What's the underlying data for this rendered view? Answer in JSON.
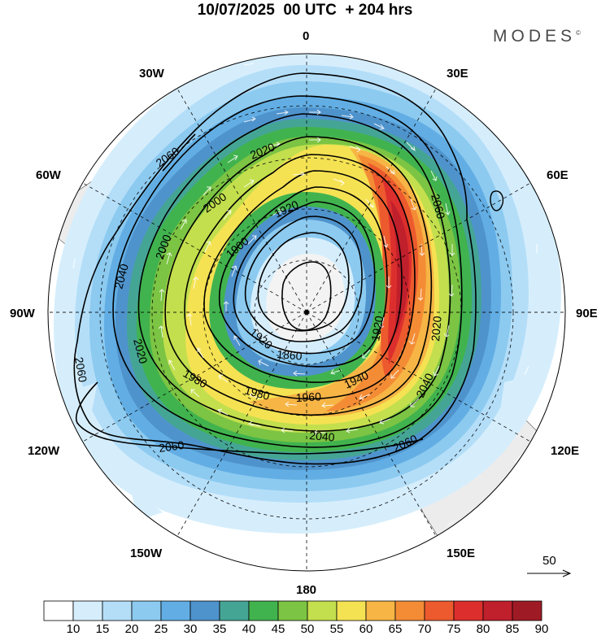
{
  "title": "10/07/2025  00 UTC  + 204 hrs",
  "brand": "MODES",
  "brand_mark": "©",
  "longitude_labels": {
    "n0": "0",
    "e30": "30E",
    "e60": "60E",
    "e90": "90E",
    "e120": "120E",
    "e150": "150E",
    "s180": "180",
    "w150": "150W",
    "w120": "120W",
    "w90": "90W",
    "w60": "60W",
    "w30": "30W"
  },
  "contour_labels": [
    "2060",
    "2020",
    "2000",
    "1920",
    "1900",
    "1860",
    "1920",
    "2020",
    "2040",
    "1940",
    "1960",
    "1980",
    "2040",
    "2060",
    "2060",
    "2020",
    "2040",
    "2000",
    "2060",
    "2060",
    "1980",
    "1920"
  ],
  "wind_reference": {
    "value": "50"
  },
  "colorbar": {
    "colors": [
      "#ffffff",
      "#d6eefc",
      "#b4def8",
      "#8ccaf0",
      "#62aee4",
      "#4f93cc",
      "#45a595",
      "#41b34e",
      "#7cc443",
      "#c3df4d",
      "#f5e253",
      "#f6b545",
      "#f48c35",
      "#ec5a2e",
      "#dc2f2d",
      "#c01f2c",
      "#9e1b25"
    ],
    "labels": [
      "10",
      "15",
      "20",
      "25",
      "30",
      "35",
      "40",
      "45",
      "50",
      "55",
      "60",
      "65",
      "70",
      "75",
      "80",
      "85",
      "90"
    ]
  }
}
